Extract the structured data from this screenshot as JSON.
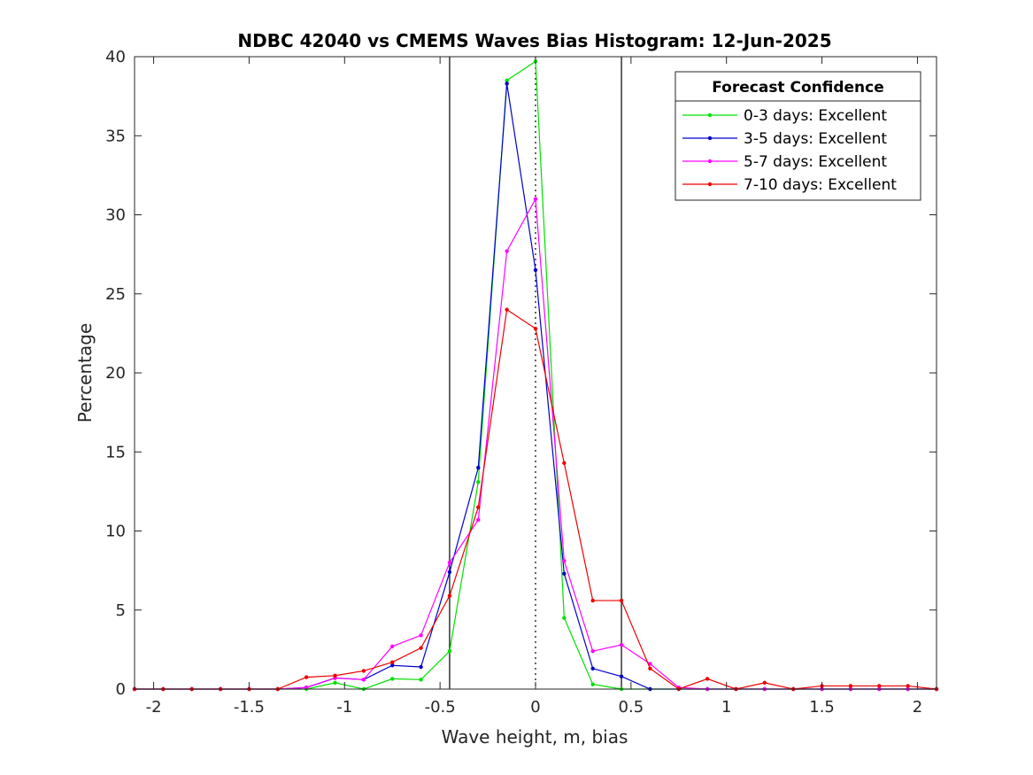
{
  "chart_data": {
    "type": "line",
    "title": "NDBC 42040 vs CMEMS Waves Bias Histogram: 12-Jun-2025",
    "xlabel": "Wave height, m, bias",
    "ylabel": "Percentage",
    "xlim": [
      -2.1,
      2.1
    ],
    "ylim": [
      0,
      40
    ],
    "xticks": [
      -2,
      -1.5,
      -1,
      -0.5,
      0,
      0.5,
      1,
      1.5,
      2
    ],
    "xtick_labels": [
      "-2",
      "-1.5",
      "-1",
      "-0.5",
      "0",
      "0.5",
      "1",
      "1.5",
      "2"
    ],
    "yticks": [
      0,
      5,
      10,
      15,
      20,
      25,
      30,
      35,
      40
    ],
    "ytick_labels": [
      "0",
      "5",
      "10",
      "15",
      "20",
      "25",
      "30",
      "35",
      "40"
    ],
    "grid": false,
    "vlines": [
      {
        "x": -0.45,
        "style": "solid"
      },
      {
        "x": 0.45,
        "style": "solid"
      },
      {
        "x": 0,
        "style": "dotted"
      }
    ],
    "legend": {
      "title": "Forecast Confidence",
      "location": "top-right"
    },
    "x": [
      -2.1,
      -1.95,
      -1.8,
      -1.65,
      -1.5,
      -1.35,
      -1.2,
      -1.05,
      -0.9,
      -0.75,
      -0.6,
      -0.45,
      -0.3,
      -0.15,
      0,
      0.15,
      0.3,
      0.45,
      0.6,
      0.75,
      0.9,
      1.05,
      1.2,
      1.35,
      1.5,
      1.65,
      1.8,
      1.95,
      2.1
    ],
    "series": [
      {
        "name": "0-3 days: Excellent",
        "color": "#00e000",
        "values": [
          0,
          0,
          0,
          0,
          0,
          0,
          0,
          0.4,
          0,
          0.65,
          0.6,
          2.4,
          13.1,
          38.5,
          39.7,
          4.5,
          0.3,
          0,
          0,
          0,
          0,
          0,
          0,
          0,
          0,
          0,
          0,
          0,
          0
        ]
      },
      {
        "name": "3-5 days: Excellent",
        "color": "#0000cc",
        "values": [
          0,
          0,
          0,
          0,
          0,
          0,
          0.1,
          0.7,
          0.6,
          1.5,
          1.4,
          7.4,
          14.0,
          38.3,
          26.5,
          7.3,
          1.3,
          0.8,
          0,
          0,
          0,
          0,
          0,
          0,
          0,
          0,
          0,
          0,
          0
        ]
      },
      {
        "name": "5-7 days: Excellent",
        "color": "#ff00ff",
        "values": [
          0,
          0,
          0,
          0,
          0,
          0,
          0.1,
          0.7,
          0.6,
          2.7,
          3.4,
          8.0,
          10.7,
          27.7,
          31.0,
          8.1,
          2.4,
          2.8,
          1.6,
          0.1,
          0,
          0,
          0,
          0,
          0,
          0,
          0,
          0,
          0
        ]
      },
      {
        "name": "7-10 days: Excellent",
        "color": "#ee0000",
        "values": [
          0,
          0,
          0,
          0,
          0,
          0,
          0.75,
          0.85,
          1.15,
          1.7,
          2.6,
          5.9,
          11.5,
          24.0,
          22.8,
          14.3,
          5.6,
          5.6,
          1.3,
          0,
          0.65,
          0,
          0.4,
          0,
          0.2,
          0.2,
          0.2,
          0.2,
          0
        ]
      }
    ]
  }
}
